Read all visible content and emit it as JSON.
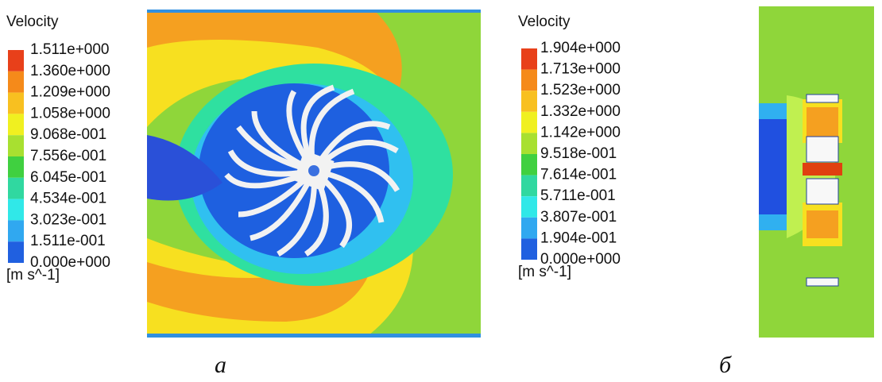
{
  "panels": [
    {
      "legend_title": "Velocity",
      "labels": [
        "1.511e+000",
        "1.360e+000",
        "1.209e+000",
        "1.058e+000",
        "9.068e-001",
        "7.556e-001",
        "6.045e-001",
        "4.534e-001",
        "3.023e-001",
        "1.511e-001",
        "0.000e+000"
      ],
      "unit": "[m s^-1]",
      "caption": "а"
    },
    {
      "legend_title": "Velocity",
      "labels": [
        "1.904e+000",
        "1.713e+000",
        "1.523e+000",
        "1.332e+000",
        "1.142e+000",
        "9.518e-001",
        "7.614e-001",
        "5.711e-001",
        "3.807e-001",
        "1.904e-001",
        "0.000e+000"
      ],
      "unit": "[m s^-1]",
      "caption": "б"
    }
  ]
}
